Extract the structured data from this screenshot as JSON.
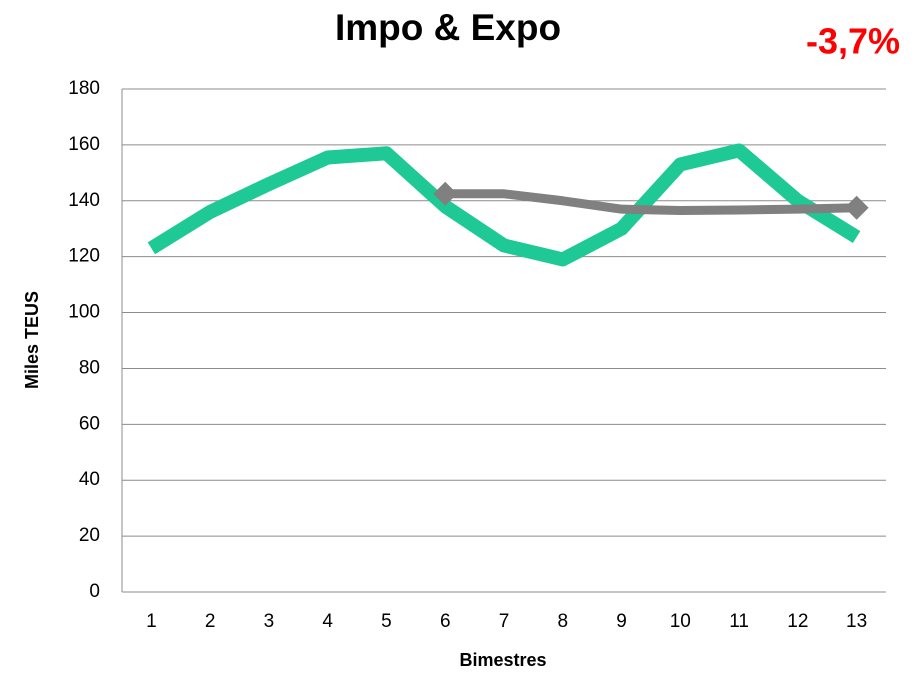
{
  "chart_data": {
    "type": "line",
    "title": "Impo & Expo",
    "annotation": "-3,7%",
    "annotation_color": "#ff0000",
    "x_label": "Bimestres",
    "y_label": "Miles TEUS",
    "categories": [
      "1",
      "2",
      "3",
      "4",
      "5",
      "6",
      "7",
      "8",
      "9",
      "10",
      "11",
      "12",
      "13"
    ],
    "series": [
      {
        "color": "#1ec995",
        "values": [
          123,
          136,
          146,
          155.5,
          157,
          138,
          124,
          119,
          130,
          153,
          158,
          140,
          127
        ]
      },
      {
        "color": "#808080",
        "values": [
          null,
          null,
          null,
          null,
          null,
          142.5,
          142.5,
          140,
          137,
          136.5,
          136.7,
          137,
          137.5
        ]
      }
    ],
    "ylim": [
      0,
      180
    ],
    "yticks": [
      0,
      20,
      40,
      60,
      80,
      100,
      120,
      140,
      160,
      180
    ],
    "grid": true
  }
}
